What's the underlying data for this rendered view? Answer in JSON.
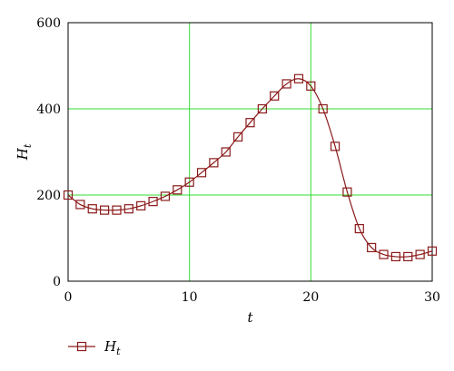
{
  "chart_data": {
    "type": "line",
    "xlabel": "t",
    "ylabel": "H",
    "ylabel_subscript": "t",
    "xlim": [
      0,
      30
    ],
    "ylim": [
      0,
      600
    ],
    "xticks": [
      0,
      10,
      20,
      30
    ],
    "yticks": [
      0,
      200,
      400,
      600
    ],
    "xtick_labels": [
      "0",
      "10",
      "20",
      "30"
    ],
    "ytick_labels": [
      "0",
      "200",
      "400",
      "600"
    ],
    "grid": true,
    "grid_color": "#33dd33",
    "legend_position": "bottom-left",
    "series": [
      {
        "name": "H",
        "name_subscript": "t",
        "color": "#8b1a1a",
        "marker": "square",
        "x": [
          0,
          1,
          2,
          3,
          4,
          5,
          6,
          7,
          8,
          9,
          10,
          11,
          12,
          13,
          14,
          15,
          16,
          17,
          18,
          19,
          20,
          21,
          22,
          23,
          24,
          25,
          26,
          27,
          28,
          29,
          30
        ],
        "y": [
          200,
          178,
          168,
          165,
          165,
          168,
          175,
          185,
          197,
          212,
          230,
          252,
          275,
          300,
          335,
          368,
          400,
          430,
          458,
          470,
          453,
          400,
          313,
          207,
          122,
          78,
          62,
          57,
          57,
          62,
          70
        ]
      }
    ]
  }
}
